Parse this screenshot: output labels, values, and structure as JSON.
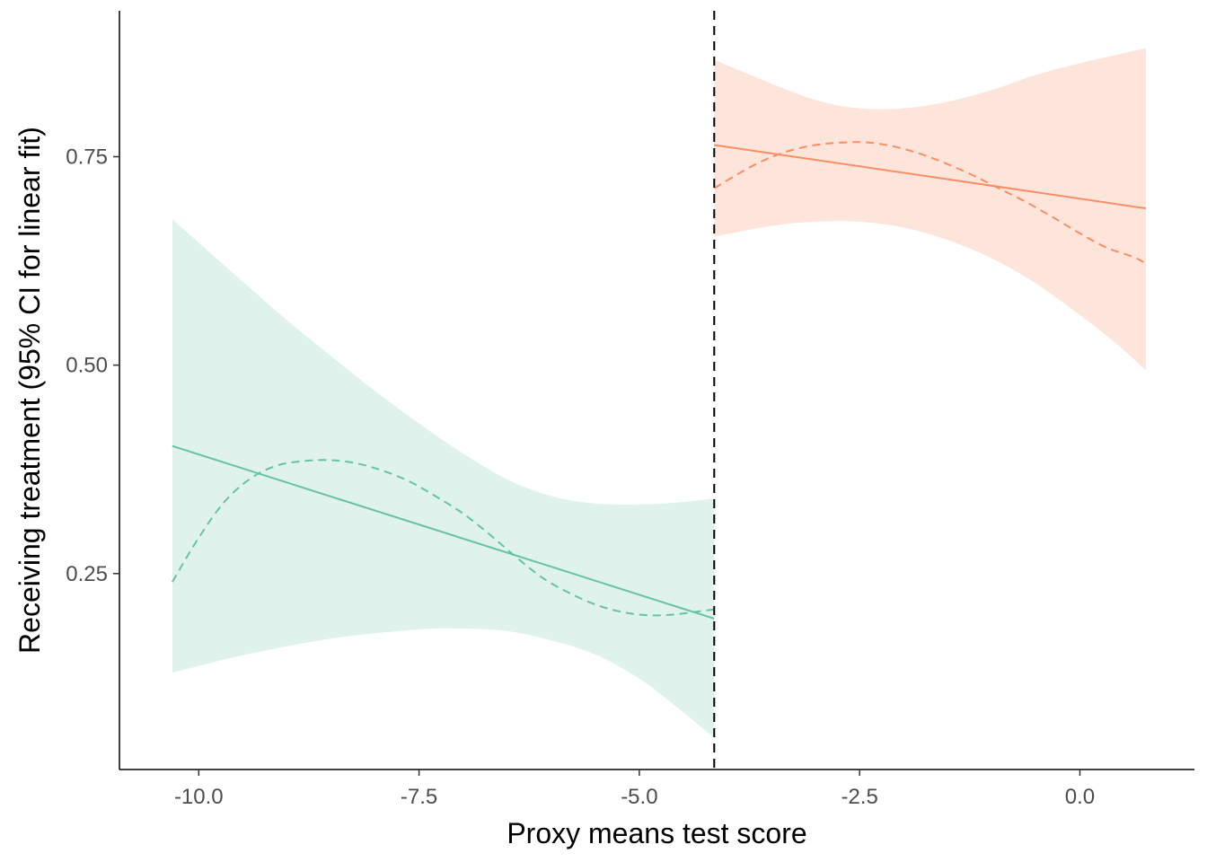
{
  "chart_data": {
    "type": "line",
    "title": "",
    "xlabel": "Proxy means test score",
    "ylabel": "Receiving treatment (95% CI for linear fit)",
    "xlim": [
      -10.9,
      1.3
    ],
    "ylim": [
      0.015,
      0.925
    ],
    "x_ticks": [
      -10.0,
      -7.5,
      -5.0,
      -2.5,
      0.0
    ],
    "x_tick_labels": [
      "-10.0",
      "-7.5",
      "-5.0",
      "-2.5",
      "0.0"
    ],
    "y_ticks": [
      0.25,
      0.5,
      0.75
    ],
    "y_tick_labels": [
      "0.25",
      "0.50",
      "0.75"
    ],
    "cutoff": -4.15,
    "grid": false,
    "legend": "none",
    "series": [
      {
        "key": "left",
        "color": "#66c2a5",
        "band_color": "#e0f2ec",
        "linear_fit": {
          "x": [
            -10.3,
            -4.15
          ],
          "y": [
            0.403,
            0.196
          ]
        },
        "ci_lower": {
          "x": [
            -10.3,
            -9.5,
            -8.5,
            -7.5,
            -7.0,
            -6.5,
            -6.0,
            -5.5,
            -5.0,
            -4.6,
            -4.15
          ],
          "y": [
            0.131,
            0.152,
            0.172,
            0.183,
            0.184,
            0.181,
            0.17,
            0.153,
            0.124,
            0.092,
            0.053
          ]
        },
        "ci_upper": {
          "x": [
            -10.3,
            -9.5,
            -9.0,
            -8.5,
            -8.0,
            -7.5,
            -7.0,
            -6.5,
            -6.0,
            -5.5,
            -5.0,
            -4.6,
            -4.15
          ],
          "y": [
            0.675,
            0.6,
            0.554,
            0.511,
            0.469,
            0.43,
            0.394,
            0.363,
            0.343,
            0.334,
            0.333,
            0.335,
            0.34
          ]
        },
        "smooth_fit": {
          "x": [
            -10.3,
            -10.0,
            -9.7,
            -9.4,
            -9.1,
            -8.8,
            -8.5,
            -8.2,
            -7.9,
            -7.6,
            -7.3,
            -7.0,
            -6.7,
            -6.4,
            -6.1,
            -5.8,
            -5.5,
            -5.2,
            -4.9,
            -4.6,
            -4.3,
            -4.15
          ],
          "y": [
            0.24,
            0.293,
            0.337,
            0.365,
            0.38,
            0.385,
            0.386,
            0.382,
            0.373,
            0.36,
            0.342,
            0.322,
            0.297,
            0.27,
            0.245,
            0.227,
            0.213,
            0.204,
            0.2,
            0.201,
            0.205,
            0.207
          ]
        }
      },
      {
        "key": "right",
        "color": "#fc8d62",
        "band_color": "#fee5dc",
        "linear_fit": {
          "x": [
            -4.15,
            0.75
          ],
          "y": [
            0.764,
            0.688
          ]
        },
        "ci_lower": {
          "x": [
            -4.15,
            -3.5,
            -3.0,
            -2.5,
            -2.0,
            -1.5,
            -1.0,
            -0.5,
            0.0,
            0.4,
            0.75
          ],
          "y": [
            0.654,
            0.667,
            0.672,
            0.672,
            0.665,
            0.65,
            0.628,
            0.598,
            0.56,
            0.527,
            0.494
          ]
        },
        "ci_upper": {
          "x": [
            -4.15,
            -3.6,
            -3.0,
            -2.5,
            -2.0,
            -1.5,
            -1.0,
            -0.5,
            0.0,
            0.4,
            0.75
          ],
          "y": [
            0.866,
            0.842,
            0.818,
            0.808,
            0.808,
            0.816,
            0.83,
            0.848,
            0.862,
            0.872,
            0.88
          ]
        },
        "smooth_fit": {
          "x": [
            -4.15,
            -3.9,
            -3.6,
            -3.3,
            -3.0,
            -2.7,
            -2.4,
            -2.1,
            -1.8,
            -1.5,
            -1.2,
            -0.9,
            -0.6,
            -0.3,
            0.0,
            0.3,
            0.6,
            0.75
          ],
          "y": [
            0.712,
            0.728,
            0.745,
            0.757,
            0.764,
            0.767,
            0.767,
            0.762,
            0.753,
            0.741,
            0.727,
            0.711,
            0.695,
            0.677,
            0.658,
            0.641,
            0.63,
            0.622
          ]
        }
      }
    ]
  }
}
